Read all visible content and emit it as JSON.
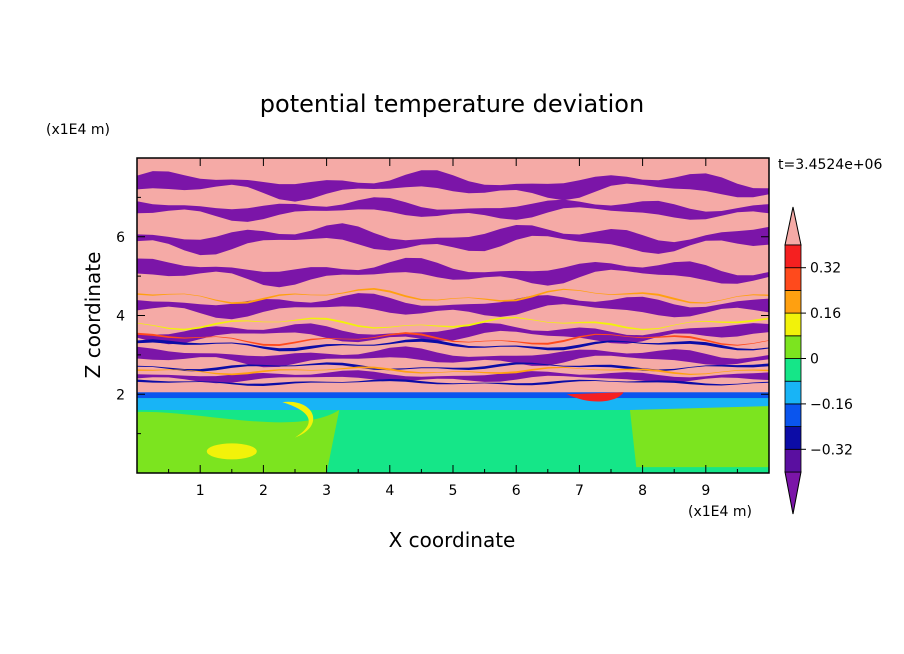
{
  "chart_data": {
    "type": "heatmap",
    "title": "potential temperature deviation",
    "xlabel": "X coordinate",
    "ylabel": "Z coordinate",
    "x_unit": "(x1E4 m)",
    "y_unit": "(x1E4 m)",
    "time_label": "t=3.4524e+06",
    "xlim": [
      0,
      10
    ],
    "ylim": [
      0,
      8
    ],
    "x_ticks": [
      1,
      2,
      3,
      4,
      5,
      6,
      7,
      8,
      9
    ],
    "y_ticks": [
      2,
      4,
      6
    ],
    "grid": false,
    "colorbar": {
      "placement": "right",
      "extend": "both",
      "levels": [
        -0.4,
        -0.32,
        -0.24,
        -0.16,
        -0.08,
        0,
        0.08,
        0.16,
        0.24,
        0.32,
        0.4
      ],
      "tick_values": [
        0.32,
        0.16,
        0,
        -0.16,
        -0.32
      ],
      "tick_labels": [
        "0.32",
        "0.16",
        "0",
        "−0.16",
        "−0.32"
      ],
      "colors": [
        "#7b15a8",
        "#5a0fa0",
        "#0c0ca6",
        "#0a55ee",
        "#18b4f6",
        "#15e688",
        "#7ce41f",
        "#f2f20a",
        "#ffa010",
        "#ff4a1c",
        "#f52020",
        "#f5aaa6"
      ]
    }
  }
}
